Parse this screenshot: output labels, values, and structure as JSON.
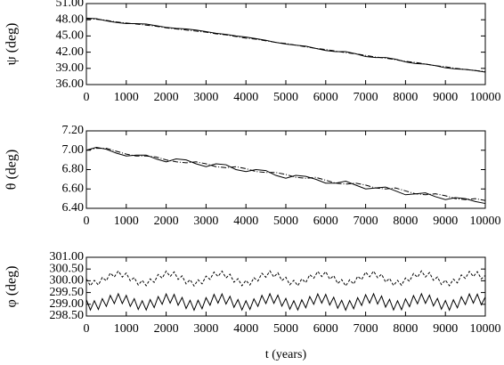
{
  "chart_data": [
    {
      "type": "line",
      "ylabel": "ψ (deg)",
      "x": [
        0,
        250,
        500,
        750,
        1000,
        1250,
        1500,
        1750,
        2000,
        2250,
        2500,
        2750,
        3000,
        3250,
        3500,
        3750,
        4000,
        4250,
        4500,
        4750,
        5000,
        5250,
        5500,
        5750,
        6000,
        6250,
        6500,
        6750,
        7000,
        7250,
        7500,
        7750,
        8000,
        8250,
        8500,
        8750,
        9000,
        9250,
        9500,
        9750,
        10000
      ],
      "series": [
        {
          "color": "#000000",
          "style": "solid",
          "values": [
            48.3,
            48.2,
            47.8,
            47.5,
            47.3,
            47.3,
            47.2,
            46.9,
            46.6,
            46.4,
            46.3,
            46.1,
            45.8,
            45.5,
            45.3,
            45.0,
            44.8,
            44.5,
            44.2,
            43.8,
            43.5,
            43.3,
            43.1,
            42.7,
            42.3,
            42.1,
            42.1,
            41.7,
            41.2,
            41.0,
            41.0,
            40.7,
            40.2,
            39.9,
            39.8,
            39.5,
            39.1,
            38.9,
            38.8,
            38.6,
            38.3
          ]
        },
        {
          "color": "#000000",
          "style": "dashdot",
          "values": [
            48.2,
            48.1,
            47.9,
            47.6,
            47.4,
            47.2,
            47.0,
            46.8,
            46.5,
            46.3,
            46.1,
            45.9,
            45.7,
            45.4,
            45.2,
            44.9,
            44.6,
            44.4,
            44.1,
            43.8,
            43.6,
            43.3,
            43.0,
            42.7,
            42.5,
            42.2,
            41.9,
            41.7,
            41.4,
            41.1,
            40.9,
            40.6,
            40.3,
            40.1,
            39.8,
            39.5,
            39.3,
            39.0,
            38.8,
            38.6,
            38.4
          ]
        }
      ],
      "xlim": [
        0,
        10000
      ],
      "xticks": [
        0,
        1000,
        2000,
        3000,
        4000,
        5000,
        6000,
        7000,
        8000,
        9000,
        10000
      ],
      "ylim": [
        36,
        51
      ],
      "yticks": [
        {
          "value": 36,
          "label": "36.00"
        },
        {
          "value": 39,
          "label": "39.00"
        },
        {
          "value": 42,
          "label": "42.00"
        },
        {
          "value": 45,
          "label": "45.00"
        },
        {
          "value": 48,
          "label": "48.00"
        },
        {
          "value": 51,
          "label": "51.00"
        }
      ]
    },
    {
      "type": "line",
      "ylabel": "θ (deg)",
      "x": [
        0,
        250,
        500,
        750,
        1000,
        1250,
        1500,
        1750,
        2000,
        2250,
        2500,
        2750,
        3000,
        3250,
        3500,
        3750,
        4000,
        4250,
        4500,
        4750,
        5000,
        5250,
        5500,
        5750,
        6000,
        6250,
        6500,
        6750,
        7000,
        7250,
        7500,
        7750,
        8000,
        8250,
        8500,
        8750,
        9000,
        9250,
        9500,
        9750,
        10000
      ],
      "series": [
        {
          "color": "#000000",
          "style": "solid",
          "values": [
            7.0,
            7.03,
            7.01,
            6.97,
            6.94,
            6.95,
            6.95,
            6.91,
            6.88,
            6.91,
            6.9,
            6.86,
            6.83,
            6.86,
            6.85,
            6.8,
            6.78,
            6.8,
            6.79,
            6.74,
            6.71,
            6.74,
            6.73,
            6.7,
            6.66,
            6.66,
            6.68,
            6.64,
            6.6,
            6.61,
            6.62,
            6.58,
            6.54,
            6.55,
            6.56,
            6.52,
            6.49,
            6.51,
            6.5,
            6.47,
            6.45
          ]
        },
        {
          "color": "#000000",
          "style": "dashdot",
          "values": [
            7.0,
            7.02,
            7.02,
            6.99,
            6.96,
            6.94,
            6.94,
            6.93,
            6.9,
            6.88,
            6.87,
            6.88,
            6.86,
            6.83,
            6.82,
            6.83,
            6.81,
            6.78,
            6.77,
            6.77,
            6.75,
            6.72,
            6.71,
            6.72,
            6.69,
            6.66,
            6.65,
            6.66,
            6.64,
            6.61,
            6.6,
            6.61,
            6.58,
            6.55,
            6.54,
            6.55,
            6.53,
            6.5,
            6.49,
            6.5,
            6.48
          ]
        }
      ],
      "xlim": [
        0,
        10000
      ],
      "xticks": [
        0,
        1000,
        2000,
        3000,
        4000,
        5000,
        6000,
        7000,
        8000,
        9000,
        10000
      ],
      "ylim": [
        6.4,
        7.2
      ],
      "yticks": [
        {
          "value": 6.4,
          "label": "6.40"
        },
        {
          "value": 6.6,
          "label": "6.60"
        },
        {
          "value": 6.8,
          "label": "6.80"
        },
        {
          "value": 7.0,
          "label": "7.00"
        },
        {
          "value": 7.2,
          "label": "7.20"
        }
      ]
    },
    {
      "type": "line",
      "ylabel": "φ (deg)",
      "xlabel": "t (years)",
      "x": [
        0,
        100,
        200,
        300,
        400,
        500,
        600,
        700,
        800,
        900,
        1000,
        1100,
        1200,
        1300,
        1400,
        1500,
        1600,
        1700,
        1800,
        1900,
        2000,
        2100,
        2200,
        2300,
        2400,
        2500,
        2600,
        2700,
        2800,
        2900,
        3000,
        3100,
        3200,
        3300,
        3400,
        3500,
        3600,
        3700,
        3800,
        3900,
        4000,
        4100,
        4200,
        4300,
        4400,
        4500,
        4600,
        4700,
        4800,
        4900,
        5000,
        5100,
        5200,
        5300,
        5400,
        5500,
        5600,
        5700,
        5800,
        5900,
        6000,
        6100,
        6200,
        6300,
        6400,
        6500,
        6600,
        6700,
        6800,
        6900,
        7000,
        7100,
        7200,
        7300,
        7400,
        7500,
        7600,
        7700,
        7800,
        7900,
        8000,
        8100,
        8200,
        8300,
        8400,
        8500,
        8600,
        8700,
        8800,
        8900,
        9000,
        9100,
        9200,
        9300,
        9400,
        9500,
        9600,
        9700,
        9800,
        9900,
        10000
      ],
      "series": [
        {
          "color": "#000000",
          "style": "dashed",
          "values": [
            300.08,
            299.79,
            300.02,
            299.82,
            300.14,
            300.0,
            300.33,
            300.16,
            300.42,
            300.16,
            300.33,
            300.0,
            300.14,
            299.82,
            300.02,
            299.79,
            300.08,
            299.93,
            300.27,
            300.11,
            300.41,
            300.18,
            300.38,
            300.06,
            300.21,
            299.87,
            300.05,
            299.78,
            300.04,
            299.87,
            300.2,
            300.06,
            300.37,
            300.18,
            300.41,
            300.12,
            300.28,
            299.94,
            300.09,
            299.79,
            300.02,
            299.82,
            300.13,
            299.99,
            300.32,
            300.15,
            300.42,
            300.16,
            300.34,
            300.01,
            300.15,
            299.83,
            300.02,
            299.79,
            300.08,
            299.92,
            300.26,
            300.11,
            300.4,
            300.18,
            300.39,
            300.07,
            300.22,
            299.88,
            300.05,
            299.78,
            300.04,
            299.86,
            300.19,
            300.05,
            300.37,
            300.17,
            300.41,
            300.13,
            300.28,
            299.95,
            300.1,
            299.8,
            300.02,
            299.81,
            300.12,
            299.98,
            300.31,
            300.15,
            300.42,
            300.16,
            300.35,
            300.02,
            300.16,
            299.84,
            300.03,
            299.79,
            300.07,
            299.91,
            300.25,
            300.1,
            300.4,
            300.18,
            300.39,
            300.08,
            300.23
          ]
        },
        {
          "color": "#000000",
          "style": "solid",
          "values": [
            299.2,
            298.76,
            299.15,
            298.78,
            299.24,
            298.91,
            299.38,
            299.03,
            299.45,
            299.03,
            299.38,
            298.91,
            299.24,
            298.78,
            299.15,
            298.76,
            299.2,
            298.86,
            299.33,
            299.0,
            299.44,
            299.05,
            299.42,
            298.96,
            299.29,
            298.82,
            299.17,
            298.75,
            299.17,
            298.81,
            299.28,
            298.96,
            299.42,
            299.05,
            299.44,
            299.01,
            299.34,
            298.87,
            299.2,
            298.76,
            299.15,
            298.78,
            299.23,
            298.91,
            299.38,
            299.03,
            299.45,
            299.04,
            299.39,
            298.92,
            299.25,
            298.79,
            299.15,
            298.76,
            299.19,
            298.85,
            299.33,
            299.0,
            299.44,
            299.05,
            299.42,
            298.97,
            299.3,
            298.83,
            299.17,
            298.75,
            299.16,
            298.81,
            299.28,
            298.95,
            299.41,
            299.05,
            299.45,
            299.01,
            299.35,
            298.88,
            299.21,
            298.76,
            299.15,
            298.77,
            299.23,
            298.9,
            299.37,
            299.02,
            299.45,
            299.04,
            299.39,
            298.93,
            299.25,
            298.79,
            299.16,
            298.75,
            299.19,
            298.85,
            299.32,
            298.99,
            299.44,
            299.05,
            299.43,
            298.98,
            299.31
          ]
        }
      ],
      "xlim": [
        0,
        10000
      ],
      "xticks": [
        0,
        1000,
        2000,
        3000,
        4000,
        5000,
        6000,
        7000,
        8000,
        9000,
        10000
      ],
      "ylim": [
        298.5,
        301
      ],
      "yticks": [
        {
          "value": 298.5,
          "label": "298.50"
        },
        {
          "value": 299,
          "label": "299.00"
        },
        {
          "value": 299.5,
          "label": "299.50"
        },
        {
          "value": 300,
          "label": "300.00"
        },
        {
          "value": 300.5,
          "label": "300.50"
        },
        {
          "value": 301,
          "label": "301.00"
        }
      ]
    }
  ]
}
